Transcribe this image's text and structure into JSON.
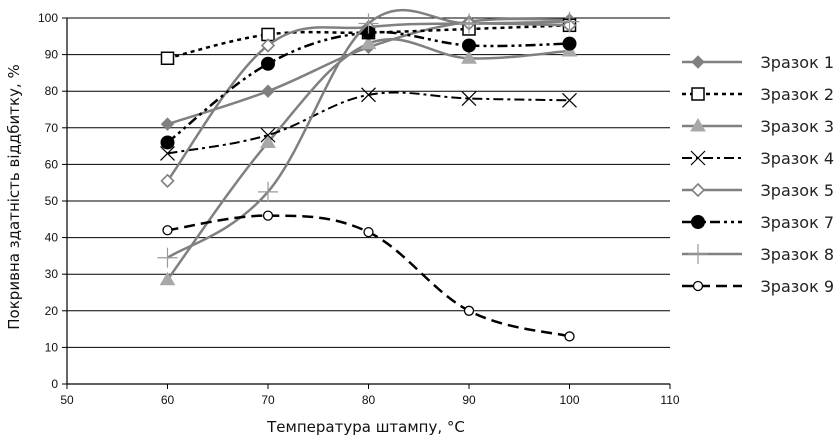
{
  "chart_data": {
    "type": "line",
    "xlabel": "Температура штампу, °С",
    "ylabel": "Покривна здатність віддбитку, %",
    "xlim": [
      50,
      110
    ],
    "ylim": [
      0,
      100
    ],
    "xticks": [
      50,
      60,
      70,
      80,
      90,
      100,
      110
    ],
    "yticks": [
      0,
      10,
      20,
      30,
      40,
      50,
      60,
      70,
      80,
      90,
      100
    ],
    "grid": "horizontal",
    "legend_position": "right",
    "x": [
      60,
      70,
      80,
      90,
      100
    ],
    "series": [
      {
        "name": "Зразок 1",
        "values": [
          71,
          80,
          92,
          99,
          99.5
        ],
        "color": "#808080",
        "marker": "diamond-filled",
        "dash": "solid",
        "width": 2.5
      },
      {
        "name": "Зразок 2",
        "values": [
          89,
          95.5,
          96,
          97,
          98
        ],
        "color": "#000000",
        "marker": "square-open",
        "dash": "dotted",
        "width": 2.5
      },
      {
        "name": "Зразок 3",
        "values": [
          28.5,
          66,
          93,
          89,
          91
        ],
        "color": "#808080",
        "marker": "triangle-filled",
        "dash": "solid",
        "width": 2.5
      },
      {
        "name": "Зразок 4",
        "values": [
          63,
          68,
          79,
          78,
          77.5
        ],
        "color": "#000000",
        "marker": "x",
        "dash": "dashdot",
        "width": 2
      },
      {
        "name": "Зразок 5",
        "values": [
          55.5,
          92.5,
          97.5,
          98.5,
          98
        ],
        "color": "#808080",
        "marker": "diamond-open",
        "dash": "solid",
        "width": 2.5
      },
      {
        "name": "Зразок 7",
        "values": [
          66,
          87.5,
          96,
          92.5,
          93
        ],
        "color": "#000000",
        "marker": "circle-filled",
        "dash": "dashdotdot",
        "width": 2.5
      },
      {
        "name": "Зразок 8",
        "values": [
          34.5,
          52.5,
          98.5,
          98.5,
          99
        ],
        "color": "#808080",
        "marker": "plus",
        "dash": "solid",
        "width": 2.5
      },
      {
        "name": "Зразок 9",
        "values": [
          42,
          46,
          41.5,
          20,
          13
        ],
        "color": "#000000",
        "marker": "circle-open",
        "dash": "dashed",
        "width": 2.5
      }
    ]
  }
}
